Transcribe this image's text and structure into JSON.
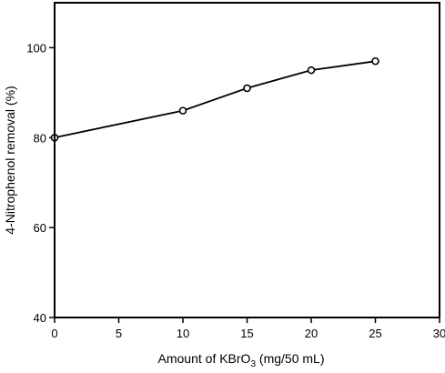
{
  "chart_data": {
    "type": "line",
    "title": "",
    "xlabel": "Amount of KBrO",
    "xlabel_sub": "3",
    "xlabel_suffix": " (mg/50 mL)",
    "ylabel": "4-Nitrophenol removal (%)",
    "xlim": [
      0,
      30
    ],
    "ylim": [
      40,
      110
    ],
    "xticks": [
      0,
      5,
      10,
      15,
      20,
      25,
      30
    ],
    "yticks": [
      40,
      60,
      80,
      100
    ],
    "grid": false,
    "legend": "none",
    "series": [
      {
        "x": [
          0,
          10,
          15,
          20,
          25
        ],
        "y": [
          80,
          86,
          91,
          95,
          97
        ],
        "marker": "open-circle",
        "color": "#000000"
      }
    ]
  }
}
